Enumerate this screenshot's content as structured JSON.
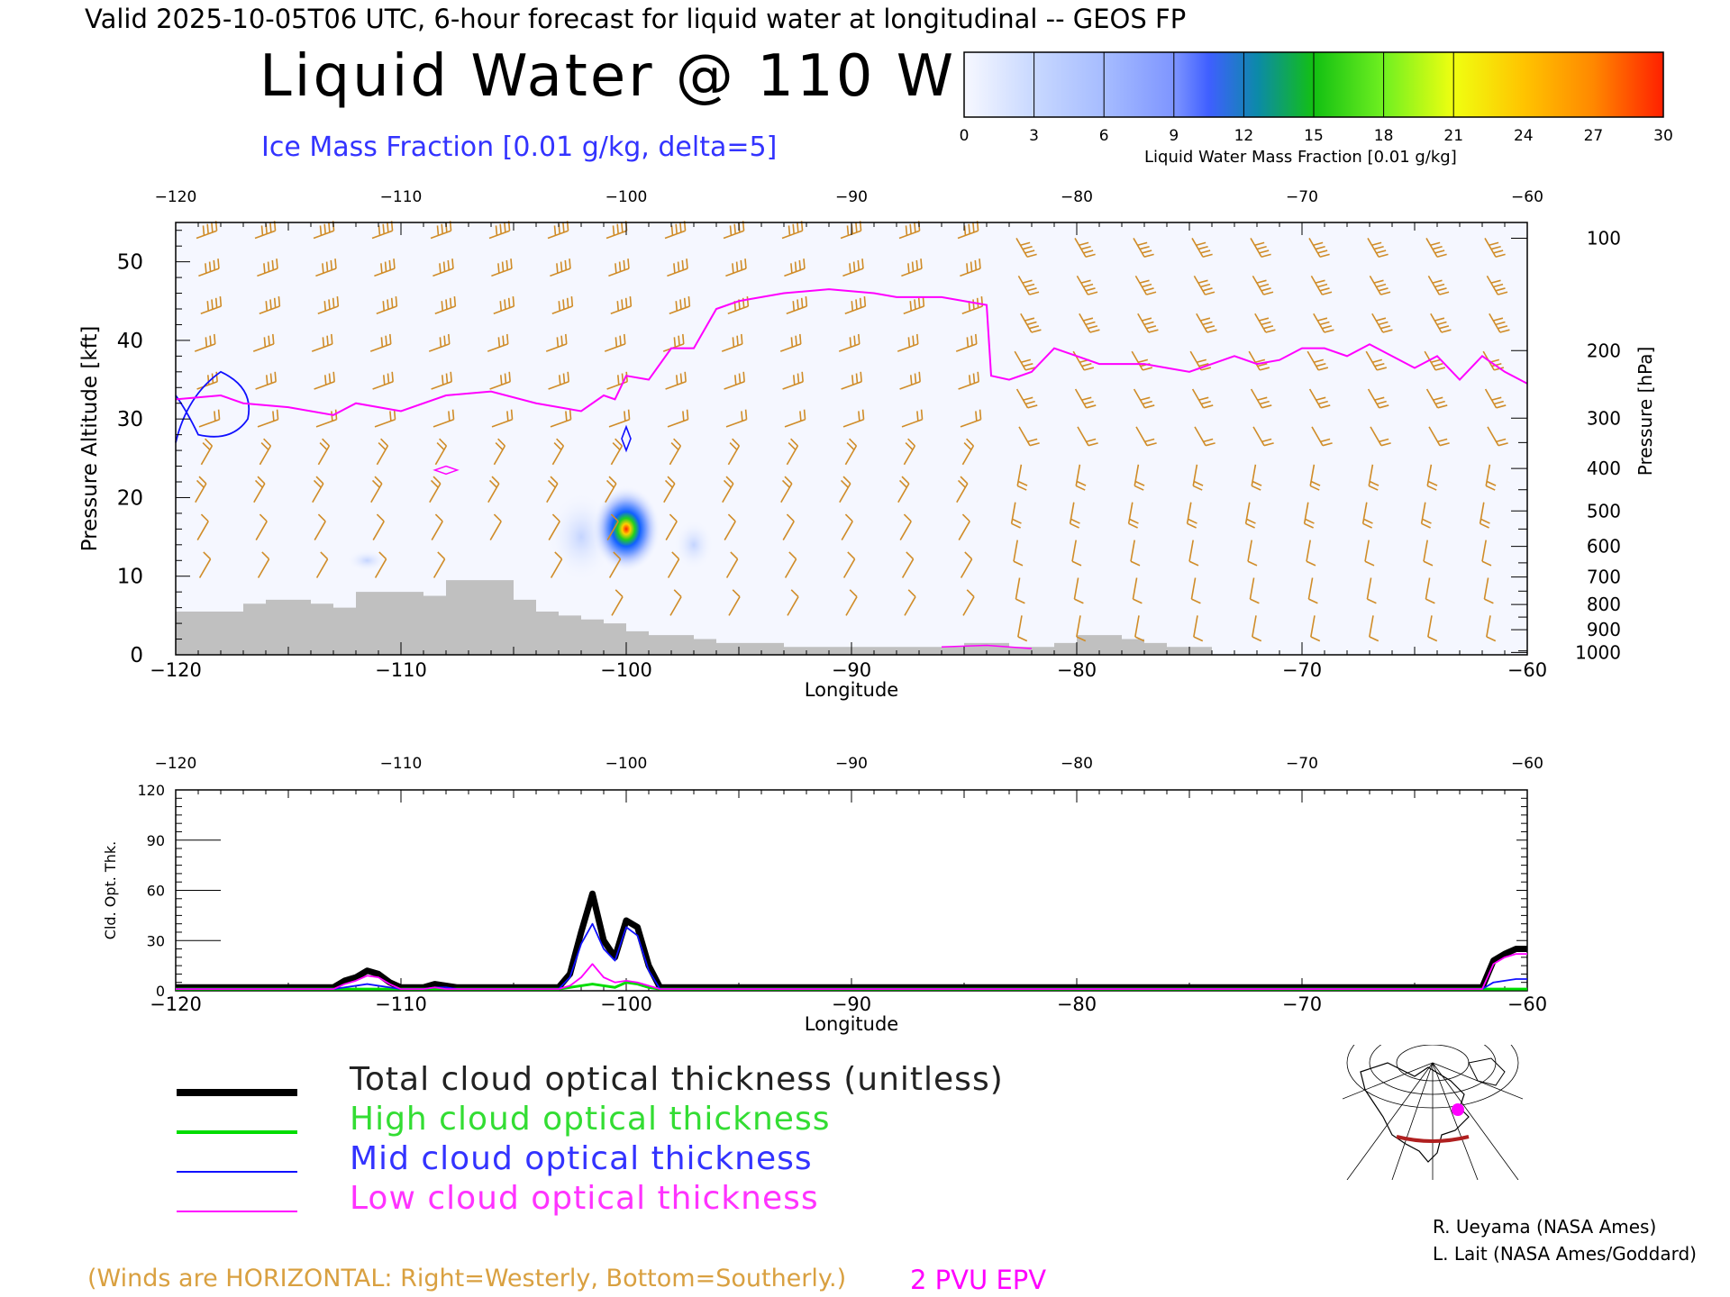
{
  "header": "Valid 2025-10-05T06 UTC, 6-hour forecast for liquid water at longitudinal -- GEOS FP",
  "title": "Liquid Water @ 110 W",
  "subtitle": "Ice Mass Fraction [0.01 g/kg, delta=5]",
  "colorbar": {
    "label": "Liquid Water Mass Fraction [0.01 g/kg]",
    "ticks": [
      "0",
      "3",
      "6",
      "9",
      "12",
      "15",
      "18",
      "21",
      "24",
      "27",
      "30"
    ],
    "colors": [
      "#f5f7ff",
      "#c3d4ff",
      "#a0b8ff",
      "#7890ff",
      "#3a5cff",
      "#0a8ca0",
      "#10c010",
      "#60f020",
      "#e0ff10",
      "#ffc000",
      "#ff8000",
      "#ff2000"
    ]
  },
  "chart_data": [
    {
      "type": "cross-section",
      "xlabel": "Longitude",
      "ylabel": "Pressure Altitude [kft]",
      "ylabel_right": "Pressure [hPa]",
      "xlim": [
        -120,
        -60
      ],
      "ylim": [
        0,
        55
      ],
      "x_ticks": [
        "−120",
        "−110",
        "−100",
        "−90",
        "−80",
        "−70",
        "−60"
      ],
      "y_ticks": [
        "0",
        "10",
        "20",
        "30",
        "40",
        "50"
      ],
      "pressure_ticks": [
        "100",
        "200",
        "300",
        "400",
        "500",
        "600",
        "700",
        "800",
        "900",
        "1000"
      ],
      "pressure_tick_kft": [
        53,
        38.7,
        30.1,
        23.7,
        18.3,
        13.8,
        9.9,
        6.4,
        3.2,
        0.3
      ],
      "epv_2pvu_line": {
        "lon": [
          -120,
          -118,
          -117,
          -115,
          -113,
          -112,
          -110,
          -108,
          -106,
          -104,
          -102,
          -101,
          -100.5,
          -100,
          -99,
          -98,
          -97,
          -96,
          -95,
          -93,
          -91,
          -89,
          -88,
          -86,
          -85,
          -84,
          -83.8,
          -83,
          -82,
          -81,
          -80,
          -79,
          -78,
          -77,
          -76,
          -75,
          -74,
          -73,
          -72,
          -71,
          -70,
          -69,
          -68,
          -67,
          -66,
          -65,
          -64,
          -63,
          -62,
          -61,
          -60
        ],
        "kft": [
          32.5,
          33,
          32,
          31.5,
          30.5,
          32,
          31,
          33,
          33.5,
          32,
          31,
          33,
          32.5,
          35.5,
          35,
          39,
          39,
          44,
          45,
          46,
          46.5,
          46,
          45.5,
          45.5,
          45,
          44.5,
          35.5,
          35,
          36,
          39,
          38,
          37,
          37,
          37,
          36.5,
          36,
          37,
          38,
          37,
          37.5,
          39,
          39,
          38,
          39.5,
          38,
          36.5,
          38,
          35,
          38,
          36,
          34.5
        ]
      },
      "terrain": {
        "lon": [
          -120,
          -119,
          -118,
          -117,
          -116,
          -115,
          -114,
          -113,
          -112,
          -111,
          -110,
          -109,
          -108,
          -107,
          -106,
          -105,
          -104,
          -103,
          -102,
          -101,
          -100,
          -99,
          -98,
          -97,
          -96,
          -95,
          -94,
          -93,
          -92,
          -91,
          -90,
          -89,
          -88,
          -87,
          -86,
          -85,
          -84,
          -83,
          -82,
          -81,
          -80,
          -79,
          -78,
          -77,
          -76,
          -75,
          -74
        ],
        "kft": [
          5.5,
          5.5,
          5.5,
          6.5,
          7,
          7,
          6.5,
          6,
          8,
          8,
          8,
          7.5,
          9.5,
          9.5,
          9.5,
          7,
          5.5,
          5,
          4.5,
          4,
          3,
          2.5,
          2.5,
          2,
          1.5,
          1.5,
          1.5,
          1,
          1,
          1,
          1,
          1,
          1,
          1,
          1,
          1.5,
          1.5,
          1,
          1,
          1.5,
          2.5,
          2.5,
          2,
          1.5,
          1,
          1,
          0
        ]
      },
      "liquid_water_max": {
        "lon": -100,
        "kft": 16,
        "value": 30
      }
    },
    {
      "type": "line",
      "xlabel": "Longitude",
      "ylabel": "Cld. Opt. Thk.",
      "xlim": [
        -120,
        -60
      ],
      "ylim": [
        0,
        120
      ],
      "x_ticks": [
        "−120",
        "−110",
        "−100",
        "−90",
        "−80",
        "−70",
        "−60"
      ],
      "y_ticks": [
        "0",
        "30",
        "60",
        "90",
        "120"
      ],
      "x": [
        -120,
        -113,
        -112.5,
        -112,
        -111.5,
        -111,
        -110.5,
        -110,
        -109,
        -108.5,
        -108,
        -107.5,
        -103,
        -102.5,
        -102,
        -101.5,
        -101,
        -100.5,
        -100,
        -99.5,
        -99,
        -98.5,
        -98,
        -62,
        -61.5,
        -61,
        -60.5,
        -60
      ],
      "series": [
        {
          "name": "Total cloud optical thickness (unitless)",
          "color": "#000000",
          "values": [
            2,
            2,
            6,
            8,
            12,
            10,
            5,
            2,
            2,
            4,
            3,
            2,
            2,
            10,
            35,
            58,
            30,
            20,
            42,
            38,
            15,
            2,
            2,
            2,
            18,
            22,
            25,
            25
          ]
        },
        {
          "name": "High cloud optical thickness",
          "color": "#00dd00",
          "values": [
            1,
            1,
            1,
            1,
            1,
            1,
            1,
            1,
            1,
            1,
            1,
            1,
            1,
            2,
            3,
            4,
            3,
            2,
            5,
            4,
            2,
            1,
            1,
            1,
            1,
            1,
            1,
            1
          ]
        },
        {
          "name": "Mid cloud optical thickness",
          "color": "#1010ff",
          "values": [
            1,
            1,
            2,
            3,
            4,
            3,
            2,
            1,
            1,
            2,
            2,
            1,
            1,
            8,
            28,
            40,
            25,
            18,
            38,
            33,
            12,
            1,
            1,
            1,
            5,
            6,
            7,
            7
          ]
        },
        {
          "name": "Low cloud optical thickness",
          "color": "#ff00ff",
          "values": [
            1,
            1,
            4,
            6,
            9,
            8,
            4,
            1,
            1,
            2,
            1,
            1,
            1,
            3,
            8,
            16,
            8,
            5,
            6,
            5,
            3,
            1,
            1,
            1,
            16,
            20,
            22,
            22
          ]
        }
      ]
    }
  ],
  "legend": {
    "total": "Total cloud optical thickness (unitless)",
    "high": "High cloud optical thickness",
    "mid": "Mid cloud optical thickness",
    "low": "Low cloud optical thickness"
  },
  "footnote": "(Winds are HORIZONTAL: Right=Westerly, Bottom=Southerly.)",
  "epv_label": "2 PVU EPV",
  "credits": [
    "R. Ueyama (NASA Ames)",
    "L. Lait (NASA Ames/Goddard)"
  ],
  "colors": {
    "wind_barb": "#d08c28",
    "epv": "#ff00ff",
    "ice_contour": "#1010ff",
    "terrain": "#c0c0c0",
    "background_field": "#f5f7ff",
    "track": "#b02020"
  }
}
